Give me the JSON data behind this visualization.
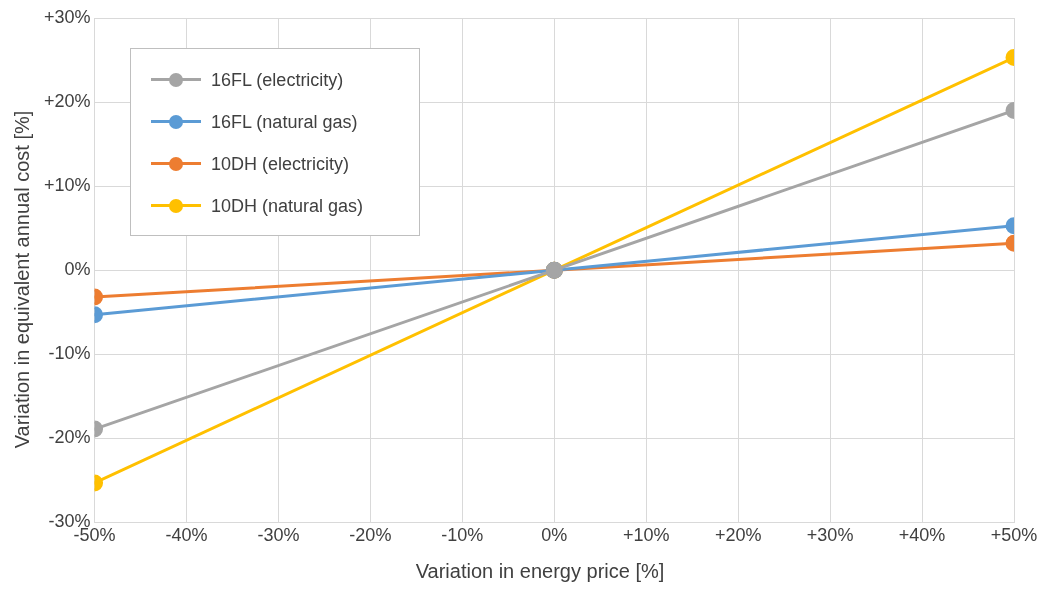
{
  "chart_data": {
    "type": "line",
    "xlabel": "Variation in energy price [%]",
    "ylabel": "Variation in equivalent annual cost [%]",
    "x": [
      -50,
      0,
      50
    ],
    "series": [
      {
        "name": "16FL (electricity)",
        "color": "#a5a5a5",
        "values": [
          -18.9,
          0,
          19.0
        ]
      },
      {
        "name": "16FL (natural gas)",
        "color": "#5b9bd5",
        "values": [
          -5.3,
          0,
          5.3
        ]
      },
      {
        "name": "10DH (electricity)",
        "color": "#ed7d31",
        "values": [
          -3.2,
          0,
          3.2
        ]
      },
      {
        "name": "10DH (natural gas)",
        "color": "#ffc000",
        "values": [
          -25.3,
          0,
          25.3
        ]
      }
    ],
    "xlim": [
      -50,
      50
    ],
    "xticks": [
      {
        "value": -50,
        "label": "-50%"
      },
      {
        "value": -40,
        "label": "-40%"
      },
      {
        "value": -30,
        "label": "-30%"
      },
      {
        "value": -20,
        "label": "-20%"
      },
      {
        "value": -10,
        "label": "-10%"
      },
      {
        "value": 0,
        "label": "0%"
      },
      {
        "value": 10,
        "label": "+10%"
      },
      {
        "value": 20,
        "label": "+20%"
      },
      {
        "value": 30,
        "label": "+30%"
      },
      {
        "value": 40,
        "label": "+40%"
      },
      {
        "value": 50,
        "label": "+50%"
      }
    ],
    "ylim": [
      -30,
      30
    ],
    "yticks": [
      {
        "value": -30,
        "label": "-30%"
      },
      {
        "value": -20,
        "label": "-20%"
      },
      {
        "value": -10,
        "label": "-10%"
      },
      {
        "value": 0,
        "label": "0%"
      },
      {
        "value": 10,
        "label": "+10%"
      },
      {
        "value": 20,
        "label": "+20%"
      },
      {
        "value": 30,
        "label": "+30%"
      }
    ],
    "grid": true,
    "legend": "top left",
    "marker": "circle",
    "line_style": "solid"
  }
}
